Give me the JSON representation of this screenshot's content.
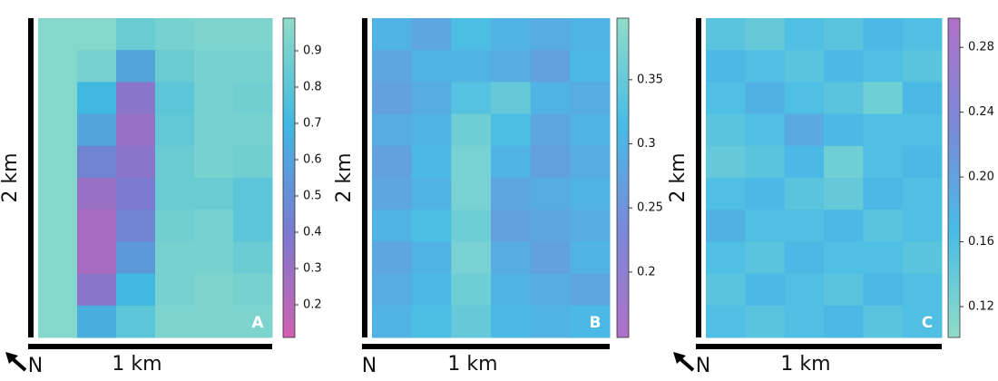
{
  "chart_data": [
    {
      "type": "heatmap",
      "panel_label": "A",
      "xlabel": "1 km",
      "ylabel": "2 km",
      "north": "N",
      "colors": [
        "#d060b0",
        "#7a7ad0",
        "#40b8e0",
        "#90dcc8"
      ],
      "zlim": [
        0.11,
        0.99
      ],
      "zticks": [
        0.2,
        0.3,
        0.4,
        0.5,
        0.6,
        0.7,
        0.8,
        0.9
      ],
      "values": [
        [
          0.95,
          0.95,
          0.85,
          0.9,
          0.92,
          0.92
        ],
        [
          0.95,
          0.9,
          0.6,
          0.85,
          0.9,
          0.9
        ],
        [
          0.95,
          0.7,
          0.35,
          0.8,
          0.9,
          0.88
        ],
        [
          0.95,
          0.6,
          0.3,
          0.82,
          0.9,
          0.9
        ],
        [
          0.95,
          0.45,
          0.35,
          0.85,
          0.9,
          0.88
        ],
        [
          0.95,
          0.3,
          0.4,
          0.85,
          0.85,
          0.8
        ],
        [
          0.95,
          0.25,
          0.45,
          0.88,
          0.9,
          0.8
        ],
        [
          0.95,
          0.25,
          0.55,
          0.9,
          0.9,
          0.85
        ],
        [
          0.95,
          0.35,
          0.7,
          0.9,
          0.92,
          0.9
        ],
        [
          0.95,
          0.65,
          0.8,
          0.92,
          0.92,
          0.92
        ]
      ]
    },
    {
      "type": "heatmap",
      "panel_label": "B",
      "xlabel": "1 km",
      "ylabel": "2 km",
      "north": "N",
      "colors": [
        "#b070c8",
        "#7a88d8",
        "#48bce6",
        "#90dcc8"
      ],
      "zlim": [
        0.149,
        0.398
      ],
      "zticks": [
        0.2,
        0.25,
        0.3,
        0.35
      ],
      "values": [
        [
          0.3,
          0.28,
          0.32,
          0.3,
          0.29,
          0.3
        ],
        [
          0.28,
          0.3,
          0.3,
          0.29,
          0.27,
          0.31
        ],
        [
          0.27,
          0.29,
          0.33,
          0.35,
          0.3,
          0.29
        ],
        [
          0.29,
          0.3,
          0.36,
          0.32,
          0.28,
          0.3
        ],
        [
          0.27,
          0.31,
          0.37,
          0.3,
          0.27,
          0.29
        ],
        [
          0.28,
          0.3,
          0.37,
          0.28,
          0.29,
          0.3
        ],
        [
          0.3,
          0.32,
          0.36,
          0.27,
          0.28,
          0.29
        ],
        [
          0.28,
          0.3,
          0.37,
          0.29,
          0.27,
          0.3
        ],
        [
          0.29,
          0.31,
          0.36,
          0.3,
          0.29,
          0.28
        ],
        [
          0.3,
          0.32,
          0.35,
          0.31,
          0.3,
          0.31
        ]
      ]
    },
    {
      "type": "heatmap",
      "panel_label": "C",
      "xlabel": "1 km",
      "ylabel": "2 km",
      "north": "N",
      "colors": [
        "#90dcc8",
        "#48bce6",
        "#7a88d8",
        "#b070c8"
      ],
      "zlim": [
        0.101,
        0.298
      ],
      "zticks": [
        0.12,
        0.16,
        {
          "value": 0.2,
          "label": "0.20"
        },
        0.24,
        0.28
      ],
      "values": [
        [
          0.15,
          0.14,
          0.16,
          0.15,
          0.17,
          0.16
        ],
        [
          0.17,
          0.16,
          0.15,
          0.17,
          0.16,
          0.15
        ],
        [
          0.16,
          0.18,
          0.16,
          0.15,
          0.13,
          0.17
        ],
        [
          0.15,
          0.16,
          0.19,
          0.17,
          0.16,
          0.16
        ],
        [
          0.14,
          0.15,
          0.17,
          0.13,
          0.16,
          0.17
        ],
        [
          0.16,
          0.17,
          0.15,
          0.14,
          0.17,
          0.16
        ],
        [
          0.18,
          0.16,
          0.16,
          0.17,
          0.15,
          0.16
        ],
        [
          0.16,
          0.15,
          0.17,
          0.16,
          0.16,
          0.15
        ],
        [
          0.15,
          0.17,
          0.16,
          0.15,
          0.17,
          0.16
        ],
        [
          0.16,
          0.15,
          0.16,
          0.17,
          0.15,
          0.16
        ]
      ]
    }
  ]
}
